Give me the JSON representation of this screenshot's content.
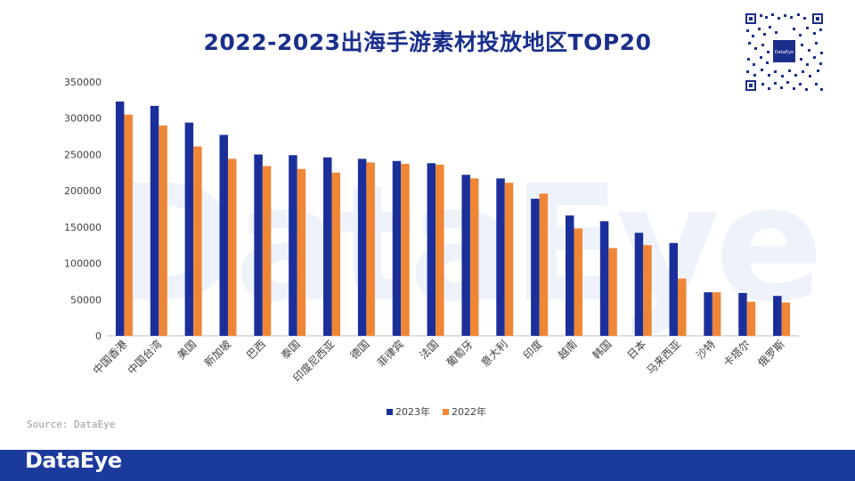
{
  "page": {
    "title": "2022-2023出海手游素材投放地区TOP20",
    "source": "Source: DataEye",
    "brand": "DataEye",
    "watermark": "DataEye"
  },
  "colors": {
    "s2023": "#1b2f9b",
    "s2022": "#ef8636",
    "footer": "#1a3a9c",
    "title": "#1a2f8c"
  },
  "chart_data": {
    "type": "bar",
    "title": "2022-2023出海手游素材投放地区TOP20",
    "xlabel": "",
    "ylabel": "",
    "ylim": [
      0,
      350000
    ],
    "yticks": [
      0,
      50000,
      100000,
      150000,
      200000,
      250000,
      300000,
      350000
    ],
    "grid": false,
    "legend": "bottom-center",
    "categories": [
      "中国香港",
      "中国台湾",
      "美国",
      "新加坡",
      "巴西",
      "泰国",
      "印度尼西亚",
      "德国",
      "菲律宾",
      "法国",
      "葡萄牙",
      "意大利",
      "印度",
      "越南",
      "韩国",
      "日本",
      "马来西亚",
      "沙特",
      "卡塔尔",
      "俄罗斯"
    ],
    "series": [
      {
        "name": "2023年",
        "values": [
          323000,
          317000,
          294000,
          277000,
          250000,
          249000,
          246000,
          244000,
          241000,
          238000,
          222000,
          217000,
          189000,
          166000,
          158000,
          142000,
          128000,
          60000,
          59000,
          55000
        ]
      },
      {
        "name": "2022年",
        "values": [
          305000,
          290000,
          261000,
          244000,
          234000,
          230000,
          225000,
          239000,
          237000,
          236000,
          217000,
          211000,
          196000,
          148000,
          121000,
          125000,
          79000,
          60000,
          47000,
          46000
        ]
      }
    ]
  }
}
